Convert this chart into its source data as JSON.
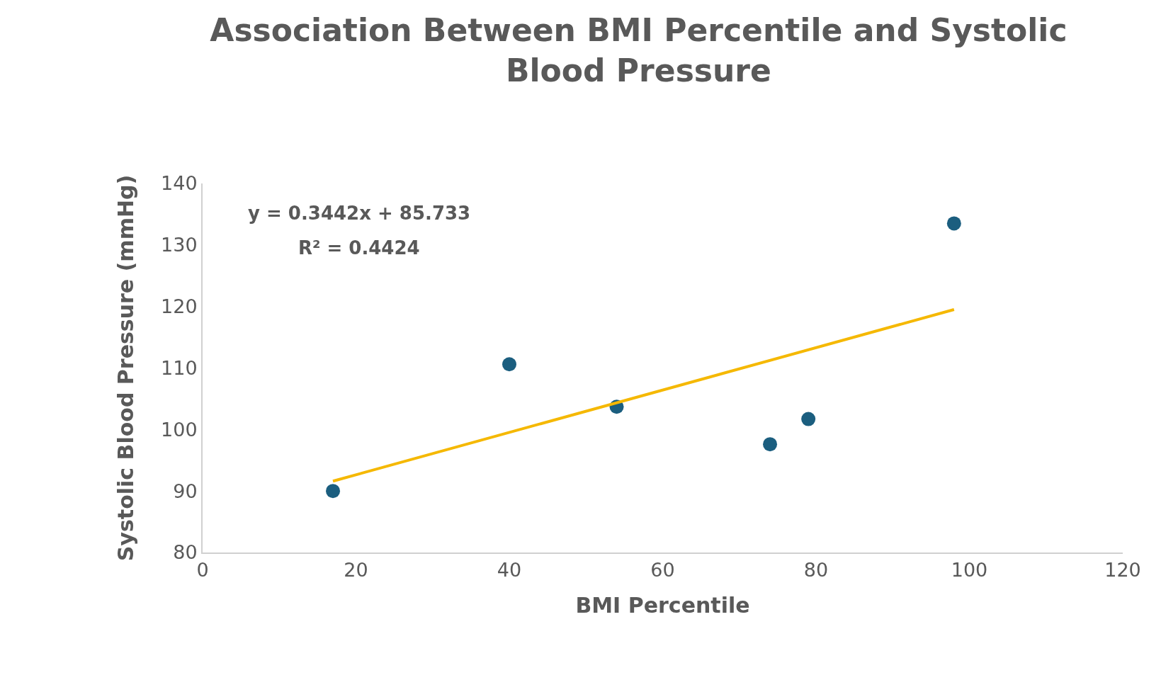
{
  "chart_data": {
    "type": "scatter",
    "title": "Association Between BMI Percentile and Systolic Blood Pressure",
    "xlabel": "BMI Percentile",
    "ylabel": "Systolic Blood Pressure (mmHg)",
    "x": [
      17,
      40,
      54,
      74,
      79,
      98
    ],
    "series": [
      {
        "color": "#1b5e7f",
        "values": [
          90,
          110.6,
          103.7,
          97.6,
          101.7,
          133.5
        ],
        "marker": "circle"
      },
      {
        "type": "line",
        "color": "#f5b800",
        "x": [
          17,
          98
        ],
        "values": [
          91.6,
          119.5
        ],
        "marker": "none"
      }
    ],
    "annotations": [
      "y = 0.3442x + 85.733",
      "R² = 0.4424"
    ],
    "xlim": [
      0,
      120
    ],
    "xticks": [
      0,
      20,
      40,
      60,
      80,
      100,
      120
    ],
    "ylim": [
      80,
      140
    ],
    "yticks": [
      80,
      90,
      100,
      110,
      120,
      130,
      140
    ]
  }
}
